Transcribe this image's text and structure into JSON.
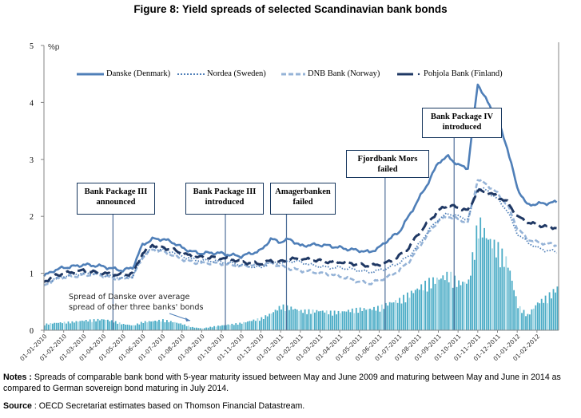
{
  "title": "Figure 8: Yield spreads of selected Scandinavian bank bonds",
  "notes": {
    "notes_label": "Notes :",
    "notes_text": "Spreads of comparable bank bond with 5-year maturity issued between May and June 2009 and maturing between May and June in 2014 as compared to German sovereign bond maturing in July 2014.",
    "source_label": "Source",
    "source_text": ": OECD Secretariat estimates based on Thomson  Financial Datastream."
  },
  "chart_data": {
    "type": "line",
    "title": "Figure 8: Yield spreads of selected Scandinavian bank bonds",
    "xlabel": "",
    "ylabel": "%p",
    "ylim": [
      0,
      5
    ],
    "yticks": [
      "0",
      "1",
      "2",
      "3",
      "4",
      "5"
    ],
    "grid": false,
    "legend_position": "top",
    "x_unit": "months since 01-01-2010",
    "xlim": [
      0,
      26.1
    ],
    "xtick_labels": [
      "01-01-2010",
      "01-02-2010",
      "01-03-2010",
      "01-04-2010",
      "01-05-2010",
      "01-06-2010",
      "01-07-2010",
      "01-08-2010",
      "01-09-2010",
      "01-10-2010",
      "01-11-2010",
      "01-12-2010",
      "01-01-2011",
      "01-02-2011",
      "01-03-2011",
      "01-04-2011",
      "01-05-2011",
      "01-06-2011",
      "01-07-2011",
      "01-08-2011",
      "01-09-2011",
      "01-10-2011",
      "01-11-2011",
      "01-12-2011",
      "01-01-2012",
      "01-02-2012"
    ],
    "x": [
      0,
      0.5,
      1,
      1.5,
      2,
      2.5,
      3,
      3.5,
      4,
      4.5,
      5,
      5.5,
      6,
      6.5,
      7,
      7.5,
      8,
      8.5,
      9,
      9.5,
      10,
      10.5,
      11,
      11.5,
      12,
      12.5,
      13,
      13.5,
      14,
      14.5,
      15,
      15.5,
      16,
      16.5,
      17,
      17.5,
      18,
      18.5,
      19,
      19.5,
      20,
      20.5,
      21,
      21.5,
      22,
      22.5,
      23,
      23.5,
      24,
      24.5,
      25,
      25.5,
      26
    ],
    "series": [
      {
        "name": "Danske (Denmark)",
        "style": "solid",
        "color": "#4f7fb8",
        "values": [
          0.95,
          1.05,
          1.1,
          1.12,
          1.15,
          1.14,
          1.12,
          1.08,
          1.05,
          1.1,
          1.5,
          1.6,
          1.6,
          1.55,
          1.45,
          1.38,
          1.35,
          1.36,
          1.35,
          1.32,
          1.3,
          1.35,
          1.4,
          1.6,
          1.55,
          1.6,
          1.48,
          1.5,
          1.5,
          1.48,
          1.45,
          1.42,
          1.4,
          1.37,
          1.45,
          1.6,
          1.72,
          2.0,
          2.3,
          2.6,
          2.95,
          3.05,
          2.9,
          2.85,
          4.33,
          4.0,
          3.7,
          3.2,
          2.5,
          2.2,
          2.22,
          2.23,
          2.25
        ]
      },
      {
        "name": "Nordea (Sweden)",
        "style": "dotted",
        "color": "#4f7fb8",
        "values": [
          0.82,
          0.9,
          0.95,
          0.98,
          1.0,
          1.0,
          0.98,
          0.95,
          0.92,
          0.95,
          1.3,
          1.45,
          1.42,
          1.38,
          1.3,
          1.25,
          1.22,
          1.22,
          1.2,
          1.18,
          1.15,
          1.12,
          1.1,
          1.2,
          1.18,
          1.22,
          1.2,
          1.15,
          1.12,
          1.1,
          1.1,
          1.08,
          1.05,
          1.02,
          1.05,
          1.1,
          1.18,
          1.3,
          1.5,
          1.75,
          1.95,
          2.05,
          2.0,
          1.95,
          2.5,
          2.45,
          2.3,
          2.1,
          1.7,
          1.55,
          1.45,
          1.4,
          1.38
        ]
      },
      {
        "name": "DNB Bank (Norway)",
        "style": "dashed",
        "color": "#95b3d7",
        "values": [
          0.78,
          0.88,
          0.93,
          0.95,
          0.97,
          0.98,
          0.96,
          0.92,
          0.9,
          0.94,
          1.28,
          1.42,
          1.38,
          1.32,
          1.25,
          1.2,
          1.17,
          1.18,
          1.17,
          1.15,
          1.12,
          1.14,
          1.15,
          1.18,
          1.12,
          1.08,
          1.05,
          1.03,
          1.0,
          0.98,
          0.95,
          0.9,
          0.85,
          0.82,
          0.88,
          0.95,
          1.05,
          1.2,
          1.45,
          1.7,
          1.92,
          2.0,
          1.95,
          1.9,
          2.65,
          2.55,
          2.4,
          2.2,
          1.8,
          1.6,
          1.55,
          1.52,
          1.5
        ]
      },
      {
        "name": "Pohjola Bank (Finland)",
        "style": "long-dash",
        "color": "#1f3864",
        "values": [
          0.85,
          0.95,
          1.0,
          1.02,
          1.05,
          1.02,
          1.0,
          0.98,
          0.97,
          1.0,
          1.35,
          1.5,
          1.45,
          1.42,
          1.35,
          1.3,
          1.28,
          1.28,
          1.27,
          1.25,
          1.2,
          1.18,
          1.17,
          1.22,
          1.2,
          1.25,
          1.25,
          1.24,
          1.22,
          1.2,
          1.2,
          1.18,
          1.15,
          1.13,
          1.15,
          1.2,
          1.3,
          1.45,
          1.7,
          1.9,
          2.1,
          2.2,
          2.15,
          2.1,
          2.45,
          2.42,
          2.35,
          2.25,
          2.0,
          1.9,
          1.85,
          1.82,
          1.8
        ]
      },
      {
        "name": "Spread of Danske over average spread of other three banks' bonds",
        "type": "bar",
        "color": "#4bacc6",
        "values": [
          0.1,
          0.12,
          0.13,
          0.14,
          0.16,
          0.17,
          0.18,
          0.15,
          0.1,
          0.08,
          0.14,
          0.15,
          0.17,
          0.14,
          0.1,
          0.05,
          0.03,
          0.06,
          0.08,
          0.1,
          0.12,
          0.16,
          0.2,
          0.28,
          0.4,
          0.37,
          0.32,
          0.32,
          0.32,
          0.3,
          0.3,
          0.33,
          0.35,
          0.35,
          0.38,
          0.45,
          0.5,
          0.6,
          0.7,
          0.8,
          0.85,
          0.92,
          0.78,
          0.8,
          1.8,
          1.5,
          1.35,
          1.1,
          0.4,
          0.25,
          0.45,
          0.55,
          0.7
        ]
      }
    ],
    "annotations": [
      {
        "text_lines": [
          "Bank Package III",
          "announced"
        ],
        "x": 3.5
      },
      {
        "text_lines": [
          "Bank Package III",
          "introduced"
        ],
        "x": 9.2
      },
      {
        "text_lines": [
          "Amagerbanken",
          "failed"
        ],
        "x": 12.3
      },
      {
        "text_lines": [
          "Fjordbank Mors",
          "failed"
        ],
        "x": 17.3
      },
      {
        "text_lines": [
          "Bank Package IV",
          "introduced"
        ],
        "x": 20.8
      }
    ],
    "inline_note": [
      "Spread of Danske over average",
      "spread of other three banks' bonds"
    ]
  }
}
